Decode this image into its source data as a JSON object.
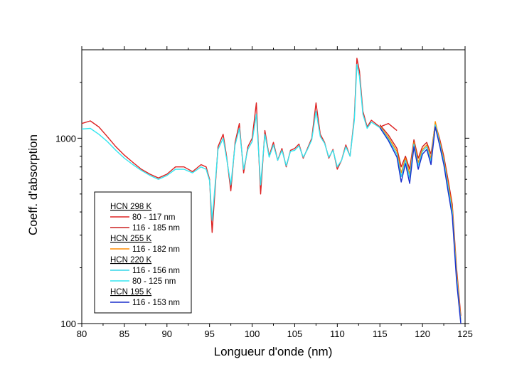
{
  "chart_data": {
    "type": "line",
    "title": "",
    "xlabel": "Longueur d'onde (nm)",
    "ylabel": "Coeff. d'absorption",
    "yscale": "log",
    "xlim": [
      80,
      125
    ],
    "ylim": [
      100,
      3000
    ],
    "x_ticks": [
      80,
      85,
      90,
      95,
      100,
      105,
      110,
      115,
      120,
      125
    ],
    "y_ticks": [
      {
        "value": 100,
        "label": "100"
      },
      {
        "value": 1000,
        "label": "1000"
      }
    ],
    "legend_position": "lower-left",
    "legend": [
      {
        "heading": "HCN 298 K",
        "entries": [
          {
            "label": "80 - 117 nm",
            "color": "#dd2222"
          },
          {
            "label": "116 - 185 nm",
            "color": "#cc2020"
          }
        ]
      },
      {
        "heading": "HCN 255 K",
        "entries": [
          {
            "label": "116 - 182 nm",
            "color": "#ff8c00"
          }
        ]
      },
      {
        "heading": "HCN 220 K",
        "entries": [
          {
            "label": "116 - 156 nm",
            "color": "#33d6e8"
          },
          {
            "label": "80 - 125 nm",
            "color": "#33e6f0"
          }
        ]
      },
      {
        "heading": "HCN 195 K",
        "entries": [
          {
            "label": "116 - 153 nm",
            "color": "#1a2ecc"
          }
        ]
      }
    ],
    "series": [
      {
        "name": "HCN 298 K 80 - 117 nm",
        "color": "#dd2222",
        "x": [
          80,
          81,
          82,
          83,
          84,
          85,
          86,
          87,
          88,
          89,
          90,
          91,
          92,
          93,
          94,
          94.6,
          95,
          95.3,
          96,
          96.6,
          97,
          97.5,
          98,
          98.5,
          99,
          99.5,
          100,
          100.5,
          101,
          101.5,
          102,
          102.5,
          103,
          103.5,
          104,
          104.5,
          105,
          105.5,
          106,
          106.5,
          107,
          107.5,
          108,
          108.5,
          109,
          109.5,
          110,
          110.5,
          111,
          111.5,
          112,
          112.3,
          112.6,
          113,
          113.5,
          114,
          115,
          116,
          117
        ],
        "y": [
          1200,
          1240,
          1150,
          1020,
          900,
          810,
          740,
          680,
          640,
          610,
          640,
          700,
          700,
          660,
          720,
          700,
          600,
          310,
          900,
          1050,
          800,
          520,
          950,
          1200,
          650,
          900,
          1000,
          1550,
          500,
          1100,
          800,
          950,
          760,
          880,
          700,
          860,
          880,
          930,
          780,
          880,
          1000,
          1550,
          1050,
          950,
          780,
          870,
          680,
          760,
          920,
          800,
          1300,
          2700,
          2300,
          1400,
          1150,
          1250,
          1150,
          1200,
          1100
        ]
      },
      {
        "name": "HCN 298 K 116 - 185 nm",
        "color": "#cc2020",
        "x": [
          115,
          116,
          117,
          117.5,
          118,
          118.5,
          119,
          119.5,
          120,
          120.5,
          121,
          121.5,
          122,
          122.5,
          123,
          123.5,
          124,
          124.5
        ],
        "y": [
          1180,
          1040,
          880,
          700,
          800,
          680,
          980,
          780,
          900,
          950,
          820,
          1200,
          1000,
          800,
          600,
          440,
          200,
          110
        ]
      },
      {
        "name": "HCN 255 K 116 - 182 nm",
        "color": "#ff8c00",
        "x": [
          115,
          116,
          117,
          117.5,
          118,
          118.5,
          119,
          119.5,
          120,
          120.5,
          121,
          121.5,
          122,
          122.5,
          123,
          123.5,
          124,
          124.5
        ],
        "y": [
          1160,
          1010,
          850,
          650,
          780,
          640,
          950,
          740,
          870,
          920,
          780,
          1230,
          970,
          770,
          570,
          420,
          190,
          105
        ]
      },
      {
        "name": "HCN 220 K 116 - 156 nm",
        "color": "#33d6e8",
        "x": [
          115,
          116,
          117,
          117.5,
          118,
          118.5,
          119,
          119.5,
          120,
          120.5,
          121,
          121.5,
          122,
          122.5,
          123,
          123.5,
          124,
          124.5
        ],
        "y": [
          1150,
          990,
          820,
          620,
          760,
          610,
          930,
          710,
          850,
          900,
          750,
          1180,
          950,
          750,
          550,
          400,
          180,
          102
        ]
      },
      {
        "name": "HCN 220 K 80 - 125 nm",
        "color": "#33e6f0",
        "x": [
          80,
          81,
          82,
          83,
          84,
          85,
          86,
          87,
          88,
          89,
          90,
          91,
          92,
          93,
          94,
          94.6,
          95,
          95.3,
          96,
          96.6,
          97,
          97.5,
          98,
          98.5,
          99,
          99.5,
          100,
          100.5,
          101,
          101.5,
          102,
          102.5,
          103,
          103.5,
          104,
          104.5,
          105,
          105.5,
          106,
          106.5,
          107,
          107.5,
          108,
          108.5,
          109,
          109.5,
          110,
          110.5,
          111,
          111.5,
          112,
          112.3,
          112.6,
          113,
          113.5,
          114,
          115
        ],
        "y": [
          1120,
          1130,
          1050,
          960,
          860,
          780,
          720,
          670,
          630,
          600,
          630,
          680,
          680,
          650,
          700,
          680,
          590,
          360,
          870,
          1000,
          780,
          560,
          920,
          1130,
          680,
          870,
          960,
          1350,
          560,
          1050,
          790,
          920,
          760,
          860,
          710,
          850,
          860,
          910,
          790,
          870,
          980,
          1400,
          1020,
          940,
          790,
          860,
          700,
          760,
          900,
          800,
          1250,
          2500,
          2150,
          1350,
          1130,
          1220,
          1140
        ]
      },
      {
        "name": "HCN 195 K 116 - 153 nm",
        "color": "#1a2ecc",
        "x": [
          115,
          116,
          117,
          117.5,
          118,
          118.5,
          119,
          119.5,
          120,
          120.5,
          121,
          121.5,
          122,
          122.5,
          123,
          123.5,
          124,
          124.5
        ],
        "y": [
          1140,
          970,
          790,
          580,
          730,
          570,
          900,
          680,
          820,
          870,
          720,
          1150,
          920,
          720,
          520,
          380,
          170,
          100
        ]
      }
    ]
  }
}
